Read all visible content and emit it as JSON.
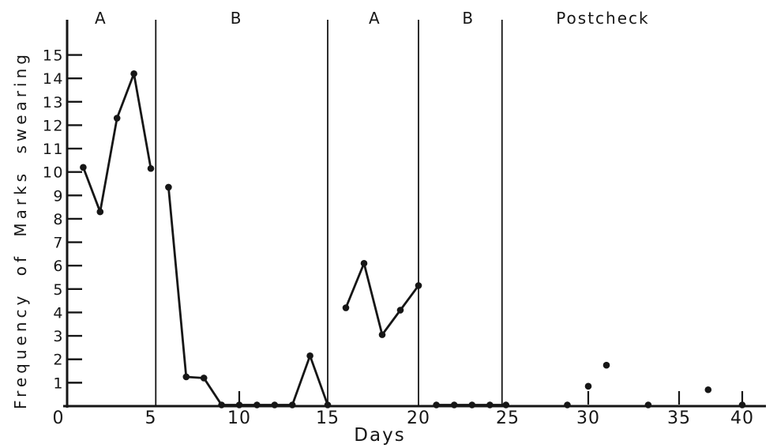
{
  "chart_data": {
    "type": "line",
    "title": "",
    "xlabel": "Days",
    "ylabel": "Frequency of Marks swearing",
    "grid": false,
    "legend": "none",
    "xlim": [
      0,
      41.5
    ],
    "ylim": [
      0,
      16.5
    ],
    "ink_color": "#161616",
    "background_color": "#ffffff",
    "x_ticks": [
      {
        "label": "0",
        "day": 0
      },
      {
        "label": "5",
        "day": 5
      },
      {
        "label": "10",
        "day": 10
      },
      {
        "label": "15",
        "day": 15
      },
      {
        "label": "20",
        "day": 20
      },
      {
        "label": "25",
        "day": 25
      },
      {
        "label": "30",
        "day": 30
      },
      {
        "label": "35",
        "day": 35
      },
      {
        "label": "40",
        "day": 40
      }
    ],
    "x_minor_tick_days": [
      10,
      30,
      35,
      40
    ],
    "y_ticks": [
      1,
      2,
      3,
      4,
      5,
      6,
      7,
      8,
      9,
      10,
      11,
      12,
      13,
      14,
      15
    ],
    "phase_boundaries_days": [
      5.28,
      15,
      20,
      24.68
    ],
    "phase_labels": [
      {
        "text": "A",
        "day": 2.05
      },
      {
        "text": "B",
        "day": 9.85
      },
      {
        "text": "A",
        "day": 17.6
      },
      {
        "text": "B",
        "day": 22.8
      },
      {
        "text": "Postcheck",
        "day": 30.8
      }
    ],
    "series": [
      {
        "id": "phase-A1",
        "connected": true,
        "points": [
          [
            1,
            10.2
          ],
          [
            2,
            8.3
          ],
          [
            3,
            12.3
          ],
          [
            4,
            14.2
          ],
          [
            5,
            10.15
          ]
        ]
      },
      {
        "id": "phase-B1",
        "connected": true,
        "points": [
          [
            6,
            9.35
          ],
          [
            7,
            1.25
          ],
          [
            8,
            1.2
          ],
          [
            9,
            0
          ],
          [
            10,
            0
          ],
          [
            11,
            0
          ],
          [
            12,
            0
          ],
          [
            13,
            0
          ],
          [
            14,
            2.15
          ],
          [
            15,
            0
          ]
        ]
      },
      {
        "id": "phase-A2",
        "connected": true,
        "points": [
          [
            16,
            4.2
          ],
          [
            17,
            6.1
          ],
          [
            18,
            3.05
          ],
          [
            19,
            4.1
          ],
          [
            20,
            5.15
          ]
        ]
      },
      {
        "id": "phase-B2",
        "connected": true,
        "points": [
          [
            21,
            0
          ],
          [
            22,
            0
          ],
          [
            23,
            0
          ],
          [
            24,
            0
          ],
          [
            24.9,
            0
          ]
        ]
      },
      {
        "id": "postcheck",
        "connected": false,
        "points": [
          [
            28.7,
            0
          ],
          [
            30,
            0.85
          ],
          [
            31,
            1.75
          ],
          [
            33.3,
            0
          ],
          [
            37.3,
            0.7
          ],
          [
            40,
            0
          ]
        ]
      }
    ]
  }
}
